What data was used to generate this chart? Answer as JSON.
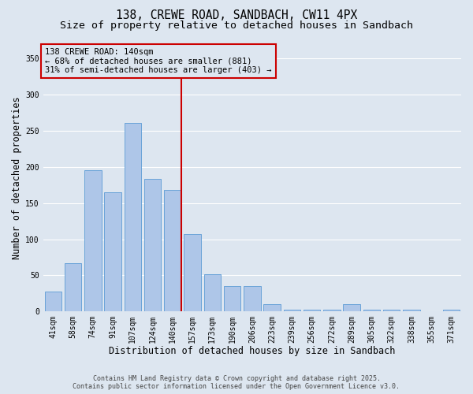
{
  "title_line1": "138, CREWE ROAD, SANDBACH, CW11 4PX",
  "title_line2": "Size of property relative to detached houses in Sandbach",
  "xlabel": "Distribution of detached houses by size in Sandbach",
  "ylabel": "Number of detached properties",
  "categories": [
    "41sqm",
    "58sqm",
    "74sqm",
    "91sqm",
    "107sqm",
    "124sqm",
    "140sqm",
    "157sqm",
    "173sqm",
    "190sqm",
    "206sqm",
    "223sqm",
    "239sqm",
    "256sqm",
    "272sqm",
    "289sqm",
    "305sqm",
    "322sqm",
    "338sqm",
    "355sqm",
    "371sqm"
  ],
  "values": [
    28,
    67,
    196,
    165,
    261,
    183,
    168,
    107,
    52,
    35,
    35,
    10,
    2,
    2,
    2,
    10,
    2,
    2,
    2,
    0,
    2
  ],
  "bar_color": "#aec6e8",
  "bar_edge_color": "#5b9bd5",
  "highlight_bar_index": 6,
  "vline_color": "#cc0000",
  "annotation_line1": "138 CREWE ROAD: 140sqm",
  "annotation_line2": "← 68% of detached houses are smaller (881)",
  "annotation_line3": "31% of semi-detached houses are larger (403) →",
  "annotation_box_edgecolor": "#cc0000",
  "ylim": [
    0,
    370
  ],
  "yticks": [
    0,
    50,
    100,
    150,
    200,
    250,
    300,
    350
  ],
  "background_color": "#dde6f0",
  "grid_color": "#ffffff",
  "footer_line1": "Contains HM Land Registry data © Crown copyright and database right 2025.",
  "footer_line2": "Contains public sector information licensed under the Open Government Licence v3.0.",
  "title_fontsize": 10.5,
  "subtitle_fontsize": 9.5,
  "axis_label_fontsize": 8.5,
  "tick_fontsize": 7,
  "annotation_fontsize": 7.5,
  "footer_fontsize": 6
}
